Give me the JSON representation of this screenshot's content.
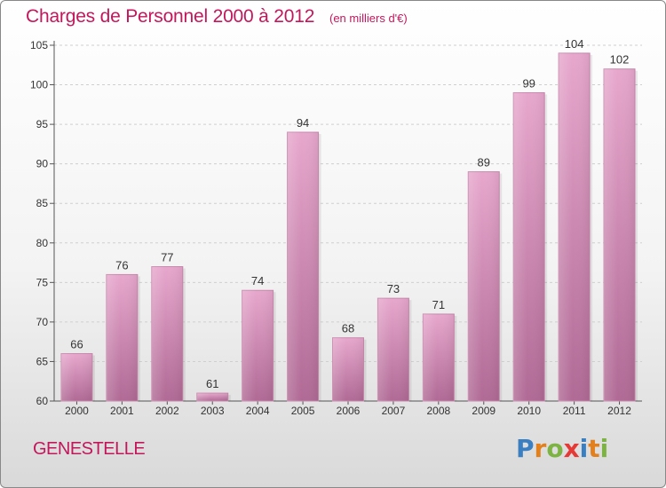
{
  "title": "Charges de Personnel 2000 à 2012",
  "subtitle": "(en milliers d'€)",
  "town": "GENESTELLE",
  "logo": {
    "text": "Proxiti",
    "letters": [
      "P",
      "r",
      "o",
      "x",
      "i",
      "t",
      "i"
    ],
    "colors": [
      "#3a7fc1",
      "#e2801e",
      "#7cb342",
      "#e53935",
      "#3a7fc1",
      "#e2801e",
      "#7cb342"
    ]
  },
  "colors": {
    "accent": "#c2185b",
    "bar_top": "#e7a7cd",
    "bar_bottom": "#b06a95"
  },
  "chart_data": {
    "type": "bar",
    "title": "Charges de Personnel 2000 à 2012",
    "subtitle": "(en milliers d'€)",
    "categories": [
      "2000",
      "2001",
      "2002",
      "2003",
      "2004",
      "2005",
      "2006",
      "2007",
      "2008",
      "2009",
      "2010",
      "2011",
      "2012"
    ],
    "values": [
      66,
      76,
      77,
      61,
      74,
      94,
      68,
      73,
      71,
      89,
      99,
      104,
      102
    ],
    "ylim": [
      60,
      105
    ],
    "yticks": [
      60,
      65,
      70,
      75,
      80,
      85,
      90,
      95,
      100,
      105
    ],
    "grid": true,
    "xlabel": "",
    "ylabel": ""
  }
}
